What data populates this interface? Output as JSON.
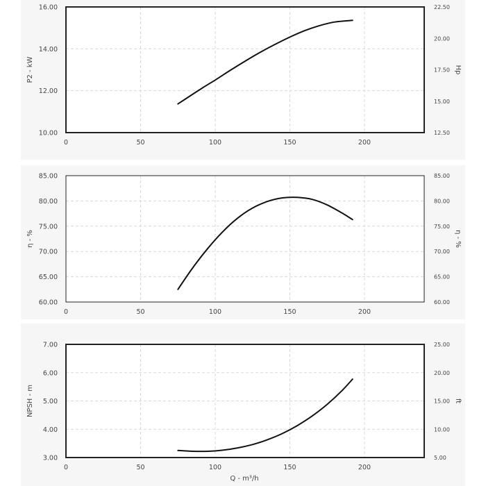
{
  "chart_data": [
    {
      "type": "line",
      "xlim": [
        0,
        240
      ],
      "ylim": [
        10,
        16
      ],
      "y2lim": [
        12.5,
        22.5
      ],
      "x_ticks": [
        "0",
        "50",
        "100",
        "150",
        "200"
      ],
      "y_ticks": [
        "10.00",
        "12.00",
        "14.00",
        "16.00"
      ],
      "y2_ticks": [
        "12.50",
        "15.00",
        "17.50",
        "20.00",
        "22.50"
      ],
      "ylabel": "P2 - kW",
      "y2label": "Hp",
      "xlabel": "",
      "grid": true,
      "series": [
        {
          "x": [
            75,
            90,
            100,
            110,
            120,
            130,
            140,
            150,
            160,
            170,
            180,
            192
          ],
          "y": [
            11.37,
            12.07,
            12.51,
            12.97,
            13.41,
            13.83,
            14.21,
            14.56,
            14.87,
            15.11,
            15.28,
            15.36
          ]
        }
      ]
    },
    {
      "type": "line",
      "xlim": [
        0,
        240
      ],
      "ylim": [
        60,
        85
      ],
      "y2lim": [
        60,
        85
      ],
      "x_ticks": [
        "0",
        "50",
        "100",
        "150",
        "200"
      ],
      "y_ticks": [
        "60.00",
        "65.00",
        "70.00",
        "75.00",
        "80.00",
        "85.00"
      ],
      "y2_ticks": [
        "60.00",
        "65.00",
        "70.00",
        "75.00",
        "80.00",
        "85.00"
      ],
      "ylabel": "η - %",
      "y2label": "η - %",
      "xlabel": "",
      "grid": true,
      "series": [
        {
          "x": [
            75,
            85,
            95,
            105,
            115,
            125,
            135,
            145,
            155,
            165,
            175,
            185,
            192
          ],
          "y": [
            62.5,
            66.8,
            70.6,
            73.9,
            76.6,
            78.6,
            79.9,
            80.6,
            80.7,
            80.3,
            79.2,
            77.6,
            76.3
          ]
        }
      ]
    },
    {
      "type": "line",
      "xlim": [
        0,
        240
      ],
      "ylim": [
        3,
        7
      ],
      "y2lim": [
        5,
        25
      ],
      "x_ticks": [
        "0",
        "50",
        "100",
        "150",
        "200"
      ],
      "y_ticks": [
        "3.00",
        "4.00",
        "5.00",
        "6.00",
        "7.00"
      ],
      "y2_ticks": [
        "5.00",
        "10.00",
        "15.00",
        "20.00",
        "25.00"
      ],
      "ylabel": "NPSH - m",
      "y2label": "ft",
      "xlabel": "Q - m³/h",
      "grid": true,
      "series": [
        {
          "x": [
            75,
            85,
            95,
            105,
            115,
            125,
            135,
            145,
            155,
            165,
            175,
            185,
            192
          ],
          "y": [
            3.25,
            3.22,
            3.22,
            3.26,
            3.34,
            3.46,
            3.63,
            3.85,
            4.13,
            4.47,
            4.88,
            5.37,
            5.77
          ]
        }
      ]
    }
  ]
}
